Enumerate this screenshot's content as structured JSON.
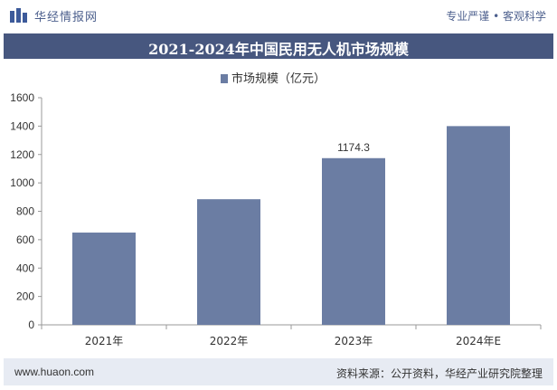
{
  "header": {
    "brand": "华经情报网",
    "slogan": "专业严谨 • 客观科学"
  },
  "footer": {
    "site": "www.huaon.com",
    "source": "资料来源：公开资料，华经产业研究院整理"
  },
  "chart_data": {
    "type": "bar",
    "title": "2021-2024年中国民用无人机市场规模",
    "categories": [
      "2021年",
      "2022年",
      "2023年",
      "2024年E"
    ],
    "series": [
      {
        "name": "市场规模（亿元）",
        "values": [
          650,
          885,
          1174.3,
          1400
        ]
      }
    ],
    "data_labels": [
      null,
      null,
      "1174.3",
      null
    ],
    "ylim": [
      0,
      1600
    ],
    "yticks": [
      0,
      200,
      400,
      600,
      800,
      1000,
      1200,
      1400,
      1600
    ],
    "xlabel": "",
    "ylabel": "",
    "grid": false,
    "legend_position": "top",
    "bar_color": "#6b7da3"
  }
}
